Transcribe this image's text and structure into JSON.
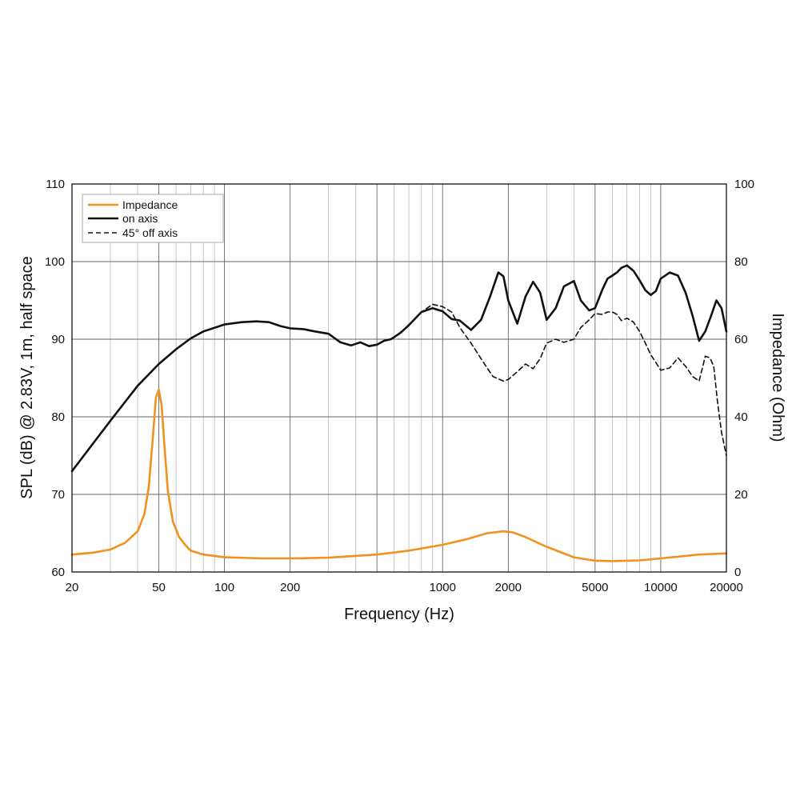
{
  "chart_data": {
    "type": "line",
    "title": "",
    "xlabel": "Frequency (Hz)",
    "ylabel": "SPL (dB) @ 2.83V, 1m, half space",
    "y2label": "Impedance (Ohm)",
    "xscale": "log",
    "xlim": [
      20,
      20000
    ],
    "ylim": [
      60,
      110
    ],
    "y2lim": [
      0,
      100
    ],
    "grid": true,
    "legend_position": "top-left",
    "x_ticks": [
      20,
      50,
      100,
      200,
      1000,
      2000,
      5000,
      10000,
      20000
    ],
    "x_tick_labels": [
      "20",
      "50",
      "100",
      "200",
      "1000",
      "2000",
      "5000",
      "10000",
      "20000"
    ],
    "y_ticks": [
      60,
      70,
      80,
      90,
      100,
      110
    ],
    "y_tick_labels": [
      "60",
      "70",
      "80",
      "90",
      "100",
      "110"
    ],
    "y2_ticks": [
      0,
      20,
      40,
      60,
      80,
      100
    ],
    "y2_tick_labels": [
      "0",
      "20",
      "40",
      "60",
      "80",
      "100"
    ],
    "series": [
      {
        "name": "Impedance",
        "axis": "right",
        "style": "solid",
        "color": "#f0921e",
        "x": [
          20,
          25,
          30,
          35,
          40,
          43,
          45,
          47,
          48.5,
          50,
          51.5,
          53,
          55,
          58,
          62,
          66,
          70,
          80,
          100,
          150,
          200,
          300,
          500,
          700,
          1000,
          1300,
          1600,
          1900,
          2100,
          2400,
          3000,
          4000,
          5000,
          6000,
          8000,
          10000,
          15000,
          20000
        ],
        "values": [
          4.5,
          5,
          5.8,
          7.5,
          10.5,
          15,
          22,
          35,
          45,
          47,
          43,
          33,
          21,
          13,
          9,
          7,
          5.5,
          4.5,
          3.8,
          3.5,
          3.5,
          3.7,
          4.5,
          5.5,
          7,
          8.5,
          10,
          10.5,
          10.2,
          9,
          6.5,
          3.8,
          2.9,
          2.8,
          3,
          3.5,
          4.5,
          4.8
        ]
      },
      {
        "name": "on axis",
        "axis": "left",
        "style": "solid",
        "color": "#111111",
        "x": [
          20,
          30,
          40,
          50,
          60,
          70,
          80,
          100,
          120,
          140,
          160,
          180,
          200,
          230,
          260,
          300,
          340,
          380,
          420,
          460,
          500,
          540,
          580,
          640,
          700,
          800,
          900,
          1000,
          1100,
          1200,
          1350,
          1500,
          1650,
          1800,
          1900,
          2000,
          2200,
          2400,
          2600,
          2800,
          3000,
          3300,
          3600,
          4000,
          4300,
          4700,
          5000,
          5400,
          5700,
          6000,
          6300,
          6600,
          7000,
          7500,
          8000,
          8500,
          9000,
          9500,
          10000,
          11000,
          12000,
          13000,
          14000,
          15000,
          16000,
          17000,
          18000,
          19000,
          20000
        ],
        "values": [
          73,
          79.5,
          84,
          86.8,
          88.7,
          90.1,
          91,
          91.9,
          92.2,
          92.3,
          92.2,
          91.7,
          91.4,
          91.3,
          91,
          90.7,
          89.6,
          89.2,
          89.6,
          89.1,
          89.3,
          89.8,
          90,
          90.8,
          91.8,
          93.5,
          94,
          93.6,
          92.6,
          92.4,
          91.2,
          92.5,
          95.5,
          98.6,
          98.1,
          95,
          92,
          95.5,
          97.4,
          96,
          92.5,
          94,
          96.8,
          97.5,
          95,
          93.7,
          94,
          96.4,
          97.8,
          98.2,
          98.6,
          99.2,
          99.5,
          98.8,
          97.6,
          96.3,
          95.7,
          96.2,
          97.8,
          98.6,
          98.2,
          96,
          93,
          89.8,
          91,
          93,
          95,
          94,
          91
        ]
      },
      {
        "name": "45° off axis",
        "axis": "left",
        "style": "dashed",
        "color": "#111111",
        "x": [
          700,
          800,
          900,
          1000,
          1100,
          1200,
          1350,
          1500,
          1700,
          1900,
          2000,
          2200,
          2400,
          2600,
          2800,
          3000,
          3300,
          3600,
          4000,
          4300,
          4700,
          5000,
          5400,
          5700,
          6000,
          6300,
          6600,
          7000,
          7500,
          8000,
          8500,
          9000,
          9500,
          10000,
          11000,
          12000,
          13000,
          14000,
          15000,
          16000,
          16800,
          17500,
          18200,
          19000,
          20000
        ],
        "values": [
          91.8,
          93.5,
          94.5,
          94.2,
          93.5,
          91.5,
          89.5,
          87.5,
          85.2,
          84.6,
          84.8,
          85.8,
          86.8,
          86.2,
          87.5,
          89.5,
          90,
          89.6,
          90,
          91.5,
          92.5,
          93.3,
          93.2,
          93.5,
          93.5,
          93.2,
          92.4,
          92.7,
          92.2,
          91,
          89.5,
          88,
          87,
          86,
          86.3,
          87.6,
          86.5,
          85.2,
          84.6,
          87.8,
          87.6,
          86.5,
          82,
          78,
          75
        ]
      }
    ]
  }
}
